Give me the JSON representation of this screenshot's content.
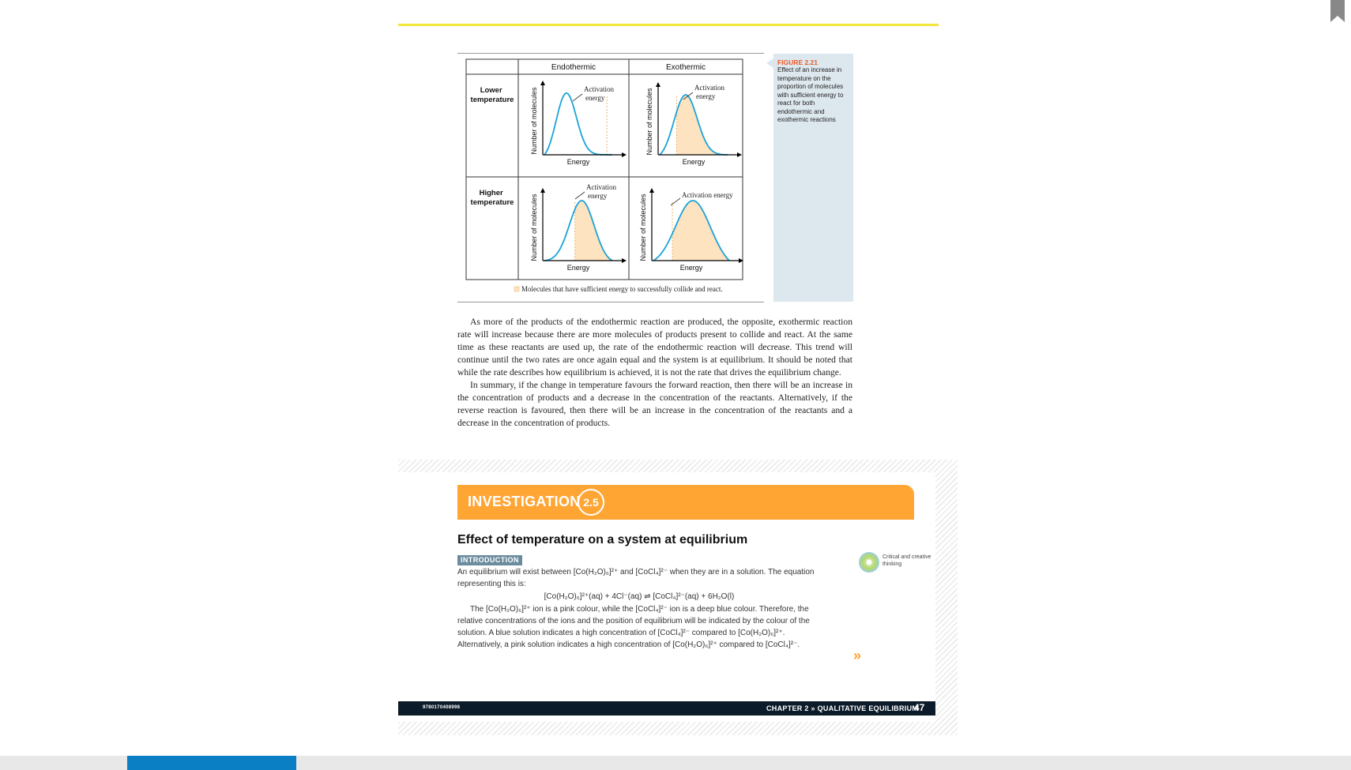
{
  "figure": {
    "col_headers": [
      "Endothermic",
      "Exothermic"
    ],
    "row_headers": [
      [
        "Lower",
        "temperature"
      ],
      [
        "Higher",
        "temperature"
      ]
    ],
    "y_axis_label": "Number of molecules",
    "x_axis_label": "Energy",
    "activation_two_line": [
      "Activation",
      "energy"
    ],
    "activation_one_line": "Activation energy",
    "legend": "Molecules that have sufficient energy to successfully collide and react.",
    "colors": {
      "curve": "#1aa3d9",
      "shade": "#fde3c0",
      "line": "#000000",
      "dash": "#e8b46a"
    },
    "panel_shading": {
      "endo_lower": 0.08,
      "exo_lower": 0.75,
      "endo_higher": 0.55,
      "exo_higher": 0.95
    },
    "caption_label": "FIGURE 2.21",
    "caption_text": "Effect of an increase in temperature on the proportion of molecules with sufficient energy to react for both endothermic and exothermic reactions"
  },
  "body": {
    "p1": "As more of the products of the endothermic reaction are produced, the opposite, exothermic reaction rate will increase because there are more molecules of products present to collide and react. At the same time as these reactants are used up, the rate of the endothermic reaction will decrease. This trend will continue until the two rates are once again equal and the system is at equilibrium. It should be noted that while the rate describes how equilibrium is achieved, it is not the rate that drives the equilibrium change.",
    "p2": "In summary, if the change in temperature favours the forward reaction, then there will be an increase in the concentration of products and a decrease in the concentration of the reactants. Alternatively, if the reverse reaction is favoured, then there will be an increase in the concentration of the reactants and a decrease in the concentration of products."
  },
  "investigation": {
    "banner": "INVESTIGATION",
    "number": "2.5",
    "heading": "Effect of temperature on a system at equilibrium",
    "intro_tag": "INTRODUCTION",
    "intro_p1": "An equilibrium will exist between [Co(H₂O)₆]²⁺ and [CoCl₄]²⁻ when they are in a solution. The equation representing this is:",
    "equation": "[Co(H₂O)₆]²⁺(aq) + 4Cl⁻(aq) ⇌ [CoCl₄]²⁻(aq) + 6H₂O(l)",
    "intro_p2": "The [Co(H₂O)₆]²⁺ ion is a pink colour, while the [CoCl₄]²⁻ ion is a deep blue colour. Therefore, the relative concentrations of the ions and the position of equilibrium will be indicated by the colour of the solution. A blue solution indicates a high concentration of [CoCl₄]²⁻ compared to [Co(H₂O)₆]²⁺. Alternatively, a pink solution indicates a high concentration of [Co(H₂O)₆]²⁺ compared to [CoCl₄]²⁻.",
    "skill_badge": "Critical and creative thinking",
    "more": "»"
  },
  "footer": {
    "isbn": "9780170408998",
    "chapter": "CHAPTER 2 » QUALITATIVE EQUILIBRIUM",
    "page": "47"
  }
}
